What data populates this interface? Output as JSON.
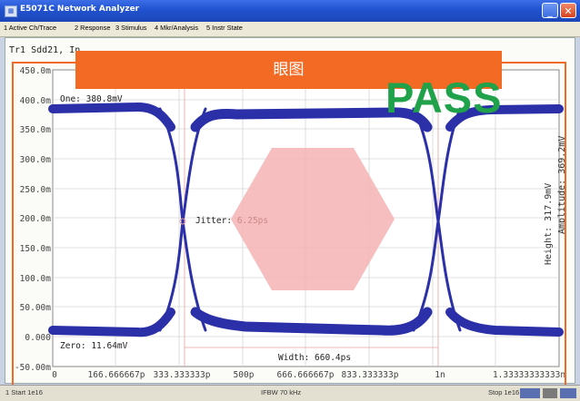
{
  "window": {
    "title": "E5071C Network Analyzer"
  },
  "menu": [
    "1 Active Ch/Trace",
    "2 Response",
    "3 Stimulus",
    "4 Mkr/Analysis",
    "5 Instr State"
  ],
  "trace_label": "Tr1 Sdd21, In",
  "banner": "眼图",
  "pass_text": "PASS",
  "colors": {
    "accent": "#f26a24",
    "eye": "#2b2fa8",
    "pass": "#1fa24a",
    "mask": "#f6b3b4"
  },
  "annotations": {
    "one": "One: 380.8mV",
    "zero": "Zero: 11.64mV",
    "jitter_label": "Jitter:",
    "jitter_value": "6.25ps",
    "width": "Width: 660.4ps",
    "height": "Height: 317.9mV",
    "amplitude": "Amplitude: 369.2mV"
  },
  "y_ticks": [
    "450.0m",
    "400.0m",
    "350.0m",
    "300.0m",
    "250.0m",
    "200.0m",
    "150.0m",
    "100.0m",
    "50.00m",
    "0.000",
    "-50.00m"
  ],
  "x_ticks": [
    "0",
    "166.666667p",
    "333.333333p",
    "500p",
    "666.666667p",
    "833.333333p",
    "1n",
    "1.33333333333n"
  ],
  "status": {
    "start": "1 Start 1e16",
    "ifbw": "IFBW 70 kHz",
    "stop": "Stop 1e16"
  }
}
